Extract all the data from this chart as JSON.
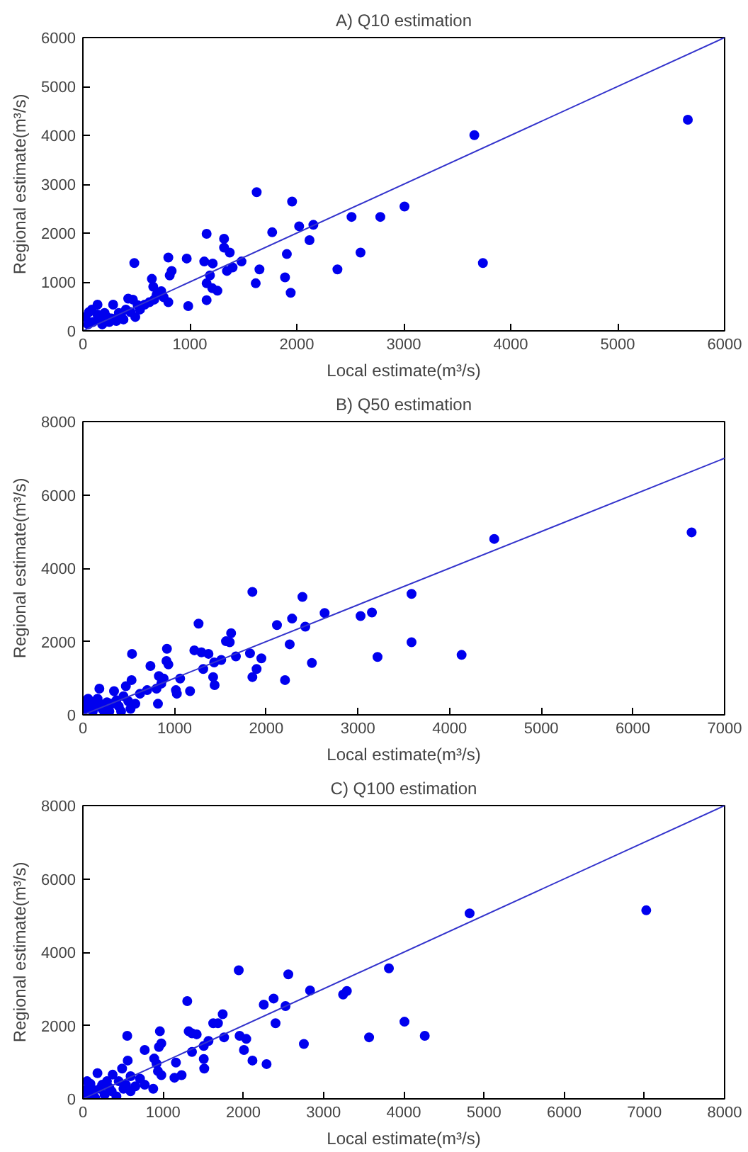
{
  "chart_data": [
    {
      "type": "scatter",
      "title": "A) Q10 estimation",
      "xlabel": "Local estimate(m³/s)",
      "ylabel": "Regional estimate(m³/s)",
      "xlim": [
        0,
        6000
      ],
      "ylim": [
        0,
        6000
      ],
      "xticks": [
        0,
        1000,
        2000,
        3000,
        4000,
        5000,
        6000
      ],
      "yticks": [
        0,
        1000,
        2000,
        3000,
        4000,
        5000,
        6000
      ],
      "series": [
        {
          "color": "#0000ee",
          "marker": "circle",
          "x": [
            5656,
            3660,
            3740,
            1625,
            1956,
            3007,
            2512,
            2781,
            2596,
            2380,
            2022,
            2155,
            2119,
            1770,
            1907,
            1890,
            1943,
            1616,
            1651,
            1483,
            1400,
            1347,
            1320,
            1320,
            1373,
            1157,
            1135,
            1214,
            1188,
            1157,
            1210,
            1258,
            1157,
            971,
            985,
            799,
            830,
            812,
            645,
            658,
            481,
            799,
            733,
            689,
            755,
            667,
            623,
            137,
            283,
            424,
            468,
            512,
            578,
            402,
            336,
            225,
            159,
            93,
            49,
            181,
            269,
            357,
            446,
            490,
            534,
            57,
            26,
            137,
            203,
            247,
            313,
            380,
            84
          ],
          "values": [
            4318,
            4003,
            1388,
            2838,
            2645,
            2544,
            2331,
            2331,
            1601,
            1257,
            2139,
            2169,
            1855,
            2017,
            1571,
            1095,
            780,
            973,
            1257,
            1419,
            1297,
            1226,
            1885,
            1703,
            1601,
            1986,
            1419,
            1378,
            1135,
            973,
            872,
            821,
            628,
            1480,
            507,
            1500,
            1226,
            1135,
            1064,
            902,
            1388,
            588,
            811,
            740,
            689,
            639,
            588,
            537,
            537,
            659,
            639,
            527,
            537,
            436,
            365,
            284,
            233,
            182,
            132,
            132,
            253,
            304,
            385,
            284,
            436,
            385,
            284,
            334,
            365,
            182,
            203,
            233,
            436
          ]
        },
        {
          "type": "line",
          "color": "#3333cc",
          "x": [
            0,
            6000
          ],
          "values": [
            0,
            6000
          ]
        }
      ]
    },
    {
      "type": "scatter",
      "title": "B) Q50 estimation",
      "xlabel": "Local estimate(m³/s)",
      "ylabel": "Regional estimate(m³/s)",
      "xlim": [
        0,
        7000
      ],
      "ylim": [
        0,
        8000
      ],
      "xticks": [
        0,
        1000,
        2000,
        3000,
        4000,
        5000,
        6000,
        7000
      ],
      "yticks": [
        0,
        2000,
        4000,
        6000,
        8000
      ],
      "series": [
        {
          "color": "#0000ee",
          "marker": "circle",
          "x": [
            6640,
            4487,
            3585,
            3585,
            4131,
            3214,
            3153,
            3029,
            2637,
            2426,
            2395,
            2282,
            2117,
            2256,
            2498,
            2205,
            1849,
            1823,
            1947,
            1895,
            1849,
            1669,
            1617,
            1602,
            1561,
            1509,
            1432,
            1421,
            1437,
            1313,
            1370,
            1293,
            1216,
            1262,
            1169,
            1061,
            1015,
            1025,
            917,
            933,
            912,
            829,
            881,
            855,
            803,
            819,
            737,
            536,
            531,
            701,
            469,
            623,
            572,
            180,
            340,
            160,
            263,
            366,
            443,
            495,
            82,
            31,
            108,
            211,
            289,
            392,
            57,
            134,
            237,
            314,
            417,
            520,
            186,
            15
          ],
          "values": [
            4978,
            4799,
            3300,
            1980,
            1636,
            1581,
            2791,
            2695,
            2778,
            2406,
            3218,
            2626,
            2448,
            1925,
            1416,
            949,
            3355,
            1678,
            1540,
            1251,
            1031,
            1595,
            2228,
            1980,
            2008,
            1499,
            1430,
            1031,
            811,
            1251,
            1664,
            1705,
            1760,
            2489,
            646,
            990,
            674,
            577,
            1801,
            1375,
            1471,
            1059,
            990,
            852,
            715,
            302,
            1334,
            1664,
            949,
            674,
            784,
            577,
            302,
            715,
            646,
            440,
            344,
            399,
            509,
            371,
            302,
            165,
            96,
            165,
            96,
            234,
            440,
            234,
            28,
            302,
            96,
            165,
            302,
            371
          ]
        },
        {
          "type": "line",
          "color": "#3333cc",
          "x": [
            0,
            7000
          ],
          "values": [
            0,
            7000
          ]
        }
      ]
    },
    {
      "type": "scatter",
      "title": "C) Q100 estimation",
      "xlabel": "Local estimate(m³/s)",
      "ylabel": "Regional estimate(m³/s)",
      "xlim": [
        0,
        8000
      ],
      "ylim": [
        0,
        8000
      ],
      "xticks": [
        0,
        1000,
        2000,
        3000,
        4000,
        5000,
        6000,
        7000,
        8000
      ],
      "yticks": [
        0,
        2000,
        4000,
        6000,
        8000
      ],
      "series": [
        {
          "color": "#0000ee",
          "marker": "circle",
          "x": [
            7023,
            4821,
            3815,
            2832,
            3291,
            3244,
            2561,
            1943,
            2378,
            2255,
            2526,
            2402,
            2755,
            3568,
            4009,
            4262,
            1301,
            1743,
            1625,
            1684,
            1319,
            1360,
            1419,
            1760,
            1954,
            2037,
            2008,
            2114,
            2290,
            1566,
            1507,
            1360,
            1507,
            1513,
            960,
            978,
            948,
            771,
            553,
            559,
            1160,
            1231,
            1142,
            889,
            918,
            978,
            936,
            877,
            771,
            654,
            595,
            489,
            712,
            182,
            371,
            300,
            447,
            536,
            94,
            35,
            124,
            212,
            271,
            359,
            418,
            506,
            65,
            153,
            241,
            330,
            595,
            112,
            53
          ],
          "values": [
            5143,
            5060,
            3561,
            2956,
            2943,
            2846,
            3396,
            3506,
            2736,
            2571,
            2530,
            2062,
            1499,
            1678,
            2104,
            1719,
            2667,
            2310,
            2062,
            2062,
            1843,
            1788,
            1760,
            1678,
            1719,
            1636,
            1334,
            1045,
            949,
            1581,
            1444,
            1279,
            1086,
            825,
            1843,
            1512,
            1416,
            1334,
            1719,
            1045,
            990,
            646,
            577,
            1100,
            962,
            646,
            756,
            275,
            385,
            344,
            619,
            825,
            550,
            701,
            660,
            481,
            481,
            385,
            412,
            247,
            137,
            275,
            110,
            206,
            69,
            275,
            69,
            27,
            385,
            302,
            206,
            275,
            481
          ]
        },
        {
          "type": "line",
          "color": "#3333cc",
          "x": [
            0,
            8000
          ],
          "values": [
            0,
            8000
          ]
        }
      ]
    }
  ]
}
